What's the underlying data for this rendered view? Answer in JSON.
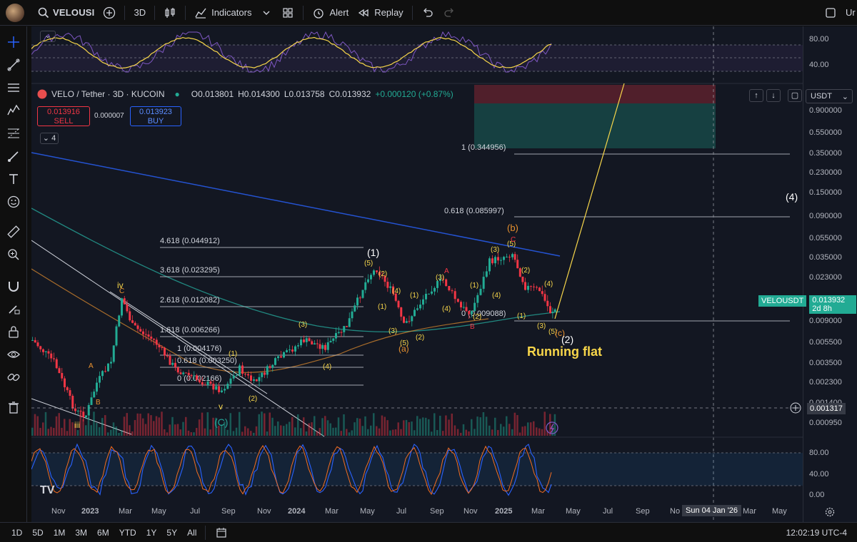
{
  "topbar": {
    "symbol": "VELOUSI",
    "timeframe": "3D",
    "indicators_label": "Indicators",
    "alert_label": "Alert",
    "replay_label": "Replay",
    "right_cut": "Ur"
  },
  "legend": {
    "symbol": "VELO / Tether · 3D · KUCOIN",
    "open": "O0.013801",
    "high": "H0.014300",
    "low": "L0.013758",
    "close": "C0.013932",
    "change": "+0.000120 (+0.87%)",
    "sell_price": "0.013916",
    "sell_label": "SELL",
    "spread": "0.000007",
    "buy_price": "0.013923",
    "buy_label": "BUY",
    "indicator_count": "4"
  },
  "currency_select": "USDT",
  "price_scale": [
    "80.00",
    "40.00",
    "0.900000",
    "0.550000",
    "0.350000",
    "0.230000",
    "0.150000",
    "0.090000",
    "0.055000",
    "0.035000",
    "0.023000",
    "0.009000",
    "0.005500",
    "0.003500",
    "0.002300",
    "0.001400",
    "0.000950",
    "80.00",
    "40.00",
    "0.00"
  ],
  "last_price": {
    "name": "VELOUSDT",
    "value": "0.013932",
    "countdown": "2d 8h"
  },
  "crosshair_price": "0.001317",
  "crosshair_date": "Sun 04 Jan '26",
  "time_axis": [
    "Nov",
    "2023",
    "Mar",
    "May",
    "Jul",
    "Sep",
    "Nov",
    "2024",
    "Mar",
    "May",
    "Jul",
    "Sep",
    "Nov",
    "2025",
    "Mar",
    "May",
    "Jul",
    "Sep",
    "No",
    "Mar",
    "May"
  ],
  "fib_levels": [
    "4.618 (0.044912)",
    "3.618 (0.023295)",
    "2.618 (0.012082)",
    "1.618 (0.006266)",
    "1 (0.004176)",
    "0.618 (0.003250)",
    "0 (0.002166)"
  ],
  "fib_target": [
    "1 (0.344956)",
    "0.618 (0.085997)",
    "0 (0.009088)"
  ],
  "wave_labels": {
    "w1": "(1)",
    "w2": "(2)",
    "w4": "(4)",
    "wb": "(b)",
    "wc": "(c)",
    "iii": "iii",
    "iv": "iv",
    "v": "v",
    "C": "(C)",
    "a": "(a)",
    "sub5": "(5)",
    "sub2": "(2)",
    "sub3": "(3)",
    "sub4": "(4)",
    "sub1": "(1)",
    "A": "A",
    "B": "B",
    "Ccircle": "C",
    "annotation": "Running flat"
  },
  "bottombar": {
    "ranges": [
      "1D",
      "5D",
      "1M",
      "3M",
      "6M",
      "YTD",
      "1Y",
      "5Y",
      "All"
    ],
    "clock": "12:02:19 UTC-4"
  },
  "colors": {
    "up": "#22ab94",
    "down": "#f23645",
    "accent": "#2962ff",
    "annotation": "#f7d64a"
  }
}
